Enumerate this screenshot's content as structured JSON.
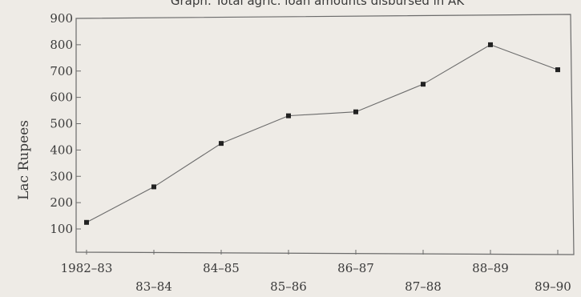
{
  "chart_data": {
    "type": "line",
    "title": "Graph: Total agric. loan amounts disbursed in AK",
    "xlabel": "",
    "ylabel": "Lac Rupees",
    "categories": [
      "1982–83",
      "83–84",
      "84–85",
      "85–86",
      "86–87",
      "87–88",
      "88–89",
      "89–90"
    ],
    "values": [
      125,
      260,
      425,
      530,
      545,
      650,
      800,
      705
    ],
    "y_ticks": [
      100,
      200,
      300,
      400,
      500,
      600,
      700,
      800,
      900
    ],
    "ylim": [
      100,
      900
    ],
    "grid": false,
    "legend": "none",
    "line_color": "#6b6b6b",
    "marker_color": "#222222"
  }
}
